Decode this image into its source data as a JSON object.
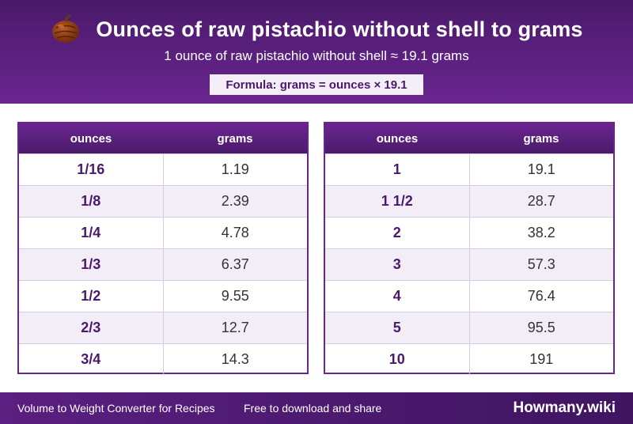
{
  "header": {
    "title": "Ounces of raw pistachio without shell to grams",
    "subtitle": "1 ounce of raw pistachio without shell ≈ 19.1 grams",
    "formula": "Formula: grams = ounces × 19.1",
    "icon": "nut-icon"
  },
  "tables": [
    {
      "columns": [
        "ounces",
        "grams"
      ],
      "rows": [
        [
          "1/16",
          "1.19"
        ],
        [
          "1/8",
          "2.39"
        ],
        [
          "1/4",
          "4.78"
        ],
        [
          "1/3",
          "6.37"
        ],
        [
          "1/2",
          "9.55"
        ],
        [
          "2/3",
          "12.7"
        ],
        [
          "3/4",
          "14.3"
        ]
      ]
    },
    {
      "columns": [
        "ounces",
        "grams"
      ],
      "rows": [
        [
          "1",
          "19.1"
        ],
        [
          "1 1/2",
          "28.7"
        ],
        [
          "2",
          "38.2"
        ],
        [
          "3",
          "57.3"
        ],
        [
          "4",
          "76.4"
        ],
        [
          "5",
          "95.5"
        ],
        [
          "10",
          "191"
        ]
      ]
    }
  ],
  "footer": {
    "left_text": "Volume to Weight Converter for Recipes",
    "mid_text": "Free to download and share",
    "brand": "Howmany.wiki"
  },
  "colors": {
    "primary": "#6a2690",
    "dark": "#4a1a6a",
    "stripe": "#f3edf7"
  }
}
